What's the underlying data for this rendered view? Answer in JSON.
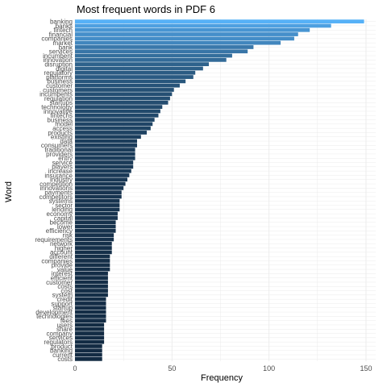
{
  "chart_data": {
    "type": "bar",
    "orientation": "horizontal",
    "title": "Most frequent words in PDF 6",
    "xlabel": "Frequency",
    "ylabel": "Word",
    "xlim": [
      0,
      155
    ],
    "xticks": [
      0,
      50,
      100,
      150
    ],
    "grid": true,
    "legend": "none",
    "fill_scale": {
      "low": "#132B43",
      "high": "#56B1F7"
    },
    "categories": [
      "banking",
      "banks",
      "fintech",
      "financial",
      "companies",
      "market",
      "bank",
      "services",
      "incumbent",
      "innovation",
      "disruption",
      "digital",
      "regulatory",
      "platforms",
      "business",
      "customer",
      "customers",
      "incumbents",
      "regulation",
      "startups",
      "technology",
      "innovative",
      "fintechs",
      "business",
      "model",
      "access",
      "products",
      "existing",
      "data",
      "consumers",
      "traditional",
      "providers",
      "entry",
      "service",
      "players",
      "increase",
      "insurance",
      "industry",
      "competition",
      "innovations",
      "payments",
      "competitors",
      "systems",
      "sector",
      "lending",
      "economy",
      "capital",
      "become",
      "lower",
      "efficiency",
      "risk",
      "requirements",
      "network",
      "higher",
      "account",
      "different",
      "companies",
      "provide",
      "value",
      "interest",
      "efficient",
      "customer",
      "costs",
      "cost",
      "system",
      "credit",
      "support",
      "startup",
      "development",
      "technologies",
      "fees",
      "users",
      "share",
      "company",
      "services",
      "regulators",
      "product",
      "banking",
      "current",
      "costs"
    ],
    "values": [
      149,
      132,
      121,
      115,
      113,
      106,
      92,
      89,
      81,
      78,
      69,
      66,
      62,
      61,
      57,
      54,
      51,
      50,
      49,
      48,
      45,
      44,
      43,
      41,
      40,
      39,
      37,
      34,
      32,
      32,
      31,
      31,
      31,
      30,
      30,
      29,
      28,
      27,
      26,
      25,
      24,
      24,
      23,
      23,
      23,
      22,
      22,
      21,
      21,
      21,
      20,
      20,
      19,
      19,
      19,
      18,
      18,
      18,
      18,
      17,
      17,
      17,
      17,
      17,
      17,
      16,
      16,
      16,
      16,
      16,
      16,
      15,
      15,
      15,
      15,
      15,
      14,
      14,
      14,
      14
    ]
  }
}
